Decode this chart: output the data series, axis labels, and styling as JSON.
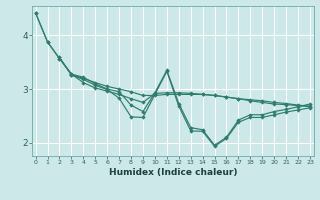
{
  "xlabel": "Humidex (Indice chaleur)",
  "bg_color": "#cce8e8",
  "grid_color": "#ffffff",
  "line_color": "#2e7d6e",
  "xlim": [
    -0.3,
    23.3
  ],
  "ylim": [
    1.75,
    4.55
  ],
  "yticks": [
    2,
    3,
    4
  ],
  "xticks": [
    0,
    1,
    2,
    3,
    4,
    5,
    6,
    7,
    8,
    9,
    10,
    11,
    12,
    13,
    14,
    15,
    16,
    17,
    18,
    19,
    20,
    21,
    22,
    23
  ],
  "series": [
    {
      "x": [
        0,
        1,
        2,
        3,
        4,
        5,
        6,
        7,
        8,
        9,
        10,
        11,
        12,
        13,
        14,
        15,
        16,
        17,
        18,
        19,
        20,
        21,
        22,
        23
      ],
      "y": [
        4.42,
        3.88,
        3.57,
        3.28,
        3.22,
        3.1,
        3.0,
        2.95,
        2.7,
        2.58,
        2.93,
        3.35,
        2.73,
        2.28,
        2.24,
        1.95,
        2.1,
        2.42,
        2.52,
        2.52,
        2.58,
        2.62,
        2.67,
        2.72
      ]
    },
    {
      "x": [
        0,
        1,
        2,
        3,
        4,
        5,
        6,
        7,
        8,
        9,
        10,
        11,
        12,
        13,
        14,
        15,
        16,
        17,
        18,
        19,
        20,
        21,
        22,
        23
      ],
      "y": [
        4.42,
        3.88,
        3.57,
        3.28,
        3.12,
        3.02,
        2.96,
        2.9,
        2.82,
        2.75,
        2.92,
        2.93,
        2.93,
        2.92,
        2.9,
        2.88,
        2.85,
        2.82,
        2.8,
        2.78,
        2.75,
        2.73,
        2.7,
        2.68
      ]
    },
    {
      "x": [
        2,
        3,
        4,
        5,
        6,
        7,
        8,
        9,
        10,
        11,
        12,
        13,
        14,
        15,
        16,
        17,
        18,
        19,
        20,
        21,
        22,
        23
      ],
      "y": [
        3.59,
        3.26,
        3.18,
        3.07,
        2.99,
        2.83,
        2.48,
        2.47,
        2.9,
        3.33,
        2.68,
        2.22,
        2.21,
        1.93,
        2.08,
        2.38,
        2.47,
        2.47,
        2.52,
        2.57,
        2.61,
        2.65
      ]
    },
    {
      "x": [
        2,
        3,
        4,
        5,
        6,
        7,
        8,
        9,
        10,
        11,
        12,
        13,
        14,
        15,
        16,
        17,
        18,
        19,
        20,
        21,
        22,
        23
      ],
      "y": [
        3.59,
        3.27,
        3.2,
        3.12,
        3.05,
        3.0,
        2.95,
        2.88,
        2.88,
        2.9,
        2.9,
        2.9,
        2.9,
        2.88,
        2.85,
        2.82,
        2.78,
        2.75,
        2.72,
        2.71,
        2.69,
        2.67
      ]
    }
  ]
}
